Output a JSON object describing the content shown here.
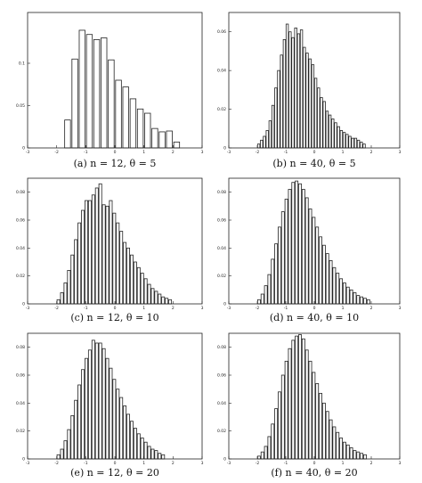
{
  "chart_data": [
    {
      "type": "bar",
      "caption": "(a) n = 12, θ = 5",
      "x_start": -1.75,
      "bin_width": 0.25,
      "values": [
        0.033,
        0.105,
        0.139,
        0.134,
        0.128,
        0.13,
        0.104,
        0.08,
        0.072,
        0.058,
        0.046,
        0.041,
        0.023,
        0.019,
        0.02,
        0.007
      ],
      "xlim": [
        -3,
        3
      ],
      "ylim": [
        0,
        0.16
      ],
      "xticks": [
        -3,
        -2,
        -1,
        0,
        1,
        2,
        3
      ],
      "yticks": [
        0,
        0.05,
        0.1
      ],
      "xtick_labels": [
        "-3",
        "-2",
        "-1",
        "0",
        "1",
        "2",
        "3"
      ],
      "ytick_labels": [
        "0",
        "0.05",
        "0.1"
      ],
      "grid": false,
      "legend": "none"
    },
    {
      "type": "bar",
      "caption": "(b) n = 40, θ = 5",
      "x_start": -2.0,
      "bin_width": 0.1,
      "values": [
        0.002,
        0.004,
        0.006,
        0.009,
        0.014,
        0.022,
        0.031,
        0.04,
        0.048,
        0.056,
        0.064,
        0.06,
        0.057,
        0.062,
        0.059,
        0.061,
        0.052,
        0.049,
        0.046,
        0.043,
        0.036,
        0.031,
        0.026,
        0.024,
        0.019,
        0.017,
        0.015,
        0.013,
        0.011,
        0.009,
        0.008,
        0.007,
        0.006,
        0.005,
        0.005,
        0.004,
        0.003,
        0.002
      ],
      "xlim": [
        -3,
        3
      ],
      "ylim": [
        0,
        0.07
      ],
      "xticks": [
        -3,
        -2,
        -1,
        0,
        1,
        2,
        3
      ],
      "yticks": [
        0,
        0.02,
        0.04,
        0.06
      ],
      "xtick_labels": [
        "-3",
        "-2",
        "-1",
        "0",
        "1",
        "2",
        "3"
      ],
      "ytick_labels": [
        "0",
        "0.02",
        "0.04",
        "0.06"
      ],
      "grid": false,
      "legend": "none"
    },
    {
      "type": "bar",
      "caption": "(c) n = 12, θ = 10",
      "x_start": -2.0,
      "bin_width": 0.12,
      "values": [
        0.003,
        0.008,
        0.015,
        0.024,
        0.035,
        0.046,
        0.058,
        0.067,
        0.074,
        0.074,
        0.078,
        0.083,
        0.086,
        0.071,
        0.07,
        0.074,
        0.065,
        0.058,
        0.052,
        0.044,
        0.04,
        0.035,
        0.03,
        0.026,
        0.022,
        0.018,
        0.014,
        0.011,
        0.009,
        0.007,
        0.005,
        0.004,
        0.003
      ],
      "xlim": [
        -3,
        3
      ],
      "ylim": [
        0,
        0.09
      ],
      "xticks": [
        -3,
        -2,
        -1,
        0,
        1,
        2,
        3
      ],
      "yticks": [
        0,
        0.02,
        0.04,
        0.06,
        0.08
      ],
      "xtick_labels": [
        "-3",
        "-2",
        "-1",
        "0",
        "1",
        "2",
        "3"
      ],
      "ytick_labels": [
        "0",
        "0.02",
        "0.04",
        "0.06",
        "0.08"
      ],
      "grid": false,
      "legend": "none"
    },
    {
      "type": "bar",
      "caption": "(d) n = 40, θ = 10",
      "x_start": -2.0,
      "bin_width": 0.12,
      "values": [
        0.003,
        0.007,
        0.013,
        0.021,
        0.032,
        0.043,
        0.055,
        0.066,
        0.075,
        0.082,
        0.087,
        0.088,
        0.086,
        0.082,
        0.076,
        0.068,
        0.062,
        0.055,
        0.048,
        0.042,
        0.036,
        0.031,
        0.026,
        0.022,
        0.018,
        0.015,
        0.012,
        0.01,
        0.008,
        0.006,
        0.005,
        0.004,
        0.003
      ],
      "xlim": [
        -3,
        3
      ],
      "ylim": [
        0,
        0.09
      ],
      "xticks": [
        -3,
        -2,
        -1,
        0,
        1,
        2,
        3
      ],
      "yticks": [
        0,
        0.02,
        0.04,
        0.06,
        0.08
      ],
      "xtick_labels": [
        "-3",
        "-2",
        "-1",
        "0",
        "1",
        "2",
        "3"
      ],
      "ytick_labels": [
        "0",
        "0.02",
        "0.04",
        "0.06",
        "0.08"
      ],
      "grid": false,
      "legend": "none"
    },
    {
      "type": "bar",
      "caption": "(e) n = 12, θ = 20",
      "x_start": -2.0,
      "bin_width": 0.12,
      "values": [
        0.003,
        0.007,
        0.013,
        0.021,
        0.031,
        0.042,
        0.053,
        0.064,
        0.072,
        0.078,
        0.085,
        0.083,
        0.083,
        0.079,
        0.072,
        0.065,
        0.057,
        0.05,
        0.044,
        0.038,
        0.032,
        0.027,
        0.022,
        0.018,
        0.015,
        0.012,
        0.009,
        0.007,
        0.006,
        0.004,
        0.003
      ],
      "xlim": [
        -3,
        3
      ],
      "ylim": [
        0,
        0.09
      ],
      "xticks": [
        -3,
        -2,
        -1,
        0,
        1,
        2,
        3
      ],
      "yticks": [
        0,
        0.02,
        0.04,
        0.06,
        0.08
      ],
      "xtick_labels": [
        "-3",
        "-2",
        "-1",
        "0",
        "1",
        "2",
        "3"
      ],
      "ytick_labels": [
        "0",
        "0.02",
        "0.04",
        "0.06",
        "0.08"
      ],
      "grid": false,
      "legend": "none"
    },
    {
      "type": "bar",
      "caption": "(f) n = 40, θ = 20",
      "x_start": -2.0,
      "bin_width": 0.12,
      "values": [
        0.002,
        0.005,
        0.009,
        0.016,
        0.025,
        0.036,
        0.048,
        0.06,
        0.07,
        0.079,
        0.085,
        0.088,
        0.089,
        0.086,
        0.078,
        0.07,
        0.062,
        0.054,
        0.047,
        0.04,
        0.034,
        0.028,
        0.023,
        0.019,
        0.015,
        0.012,
        0.01,
        0.008,
        0.006,
        0.005,
        0.004,
        0.003
      ],
      "xlim": [
        -3,
        3
      ],
      "ylim": [
        0,
        0.09
      ],
      "xticks": [
        -3,
        -2,
        -1,
        0,
        1,
        2,
        3
      ],
      "yticks": [
        0,
        0.02,
        0.04,
        0.06,
        0.08
      ],
      "xtick_labels": [
        "-3",
        "-2",
        "-1",
        "0",
        "1",
        "2",
        "3"
      ],
      "ytick_labels": [
        "0",
        "0.02",
        "0.04",
        "0.06",
        "0.08"
      ],
      "grid": false,
      "legend": "none"
    }
  ]
}
